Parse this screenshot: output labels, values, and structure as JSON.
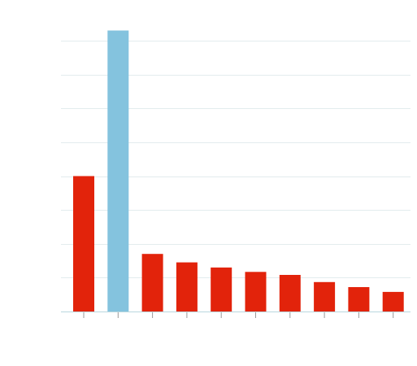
{
  "chart_data": {
    "type": "bar",
    "title": "",
    "xlabel": "",
    "ylabel": "",
    "categories": [
      "",
      "",
      "",
      "",
      "",
      "",
      "",
      "",
      "",
      ""
    ],
    "values": [
      4.0,
      8.3,
      1.7,
      1.45,
      1.3,
      1.17,
      1.08,
      0.87,
      0.72,
      0.58
    ],
    "ylim": [
      0,
      8
    ],
    "y_gridlines": [
      1,
      2,
      3,
      4,
      5,
      6,
      7,
      8
    ],
    "highlight_index": 1,
    "colors": {
      "bar": "#e2230b",
      "highlight": "#84c3de",
      "grid": "#e3ecee",
      "axis": "#b9d7df",
      "tick": "#9a9a9a"
    },
    "grid": true,
    "legend": "none"
  }
}
